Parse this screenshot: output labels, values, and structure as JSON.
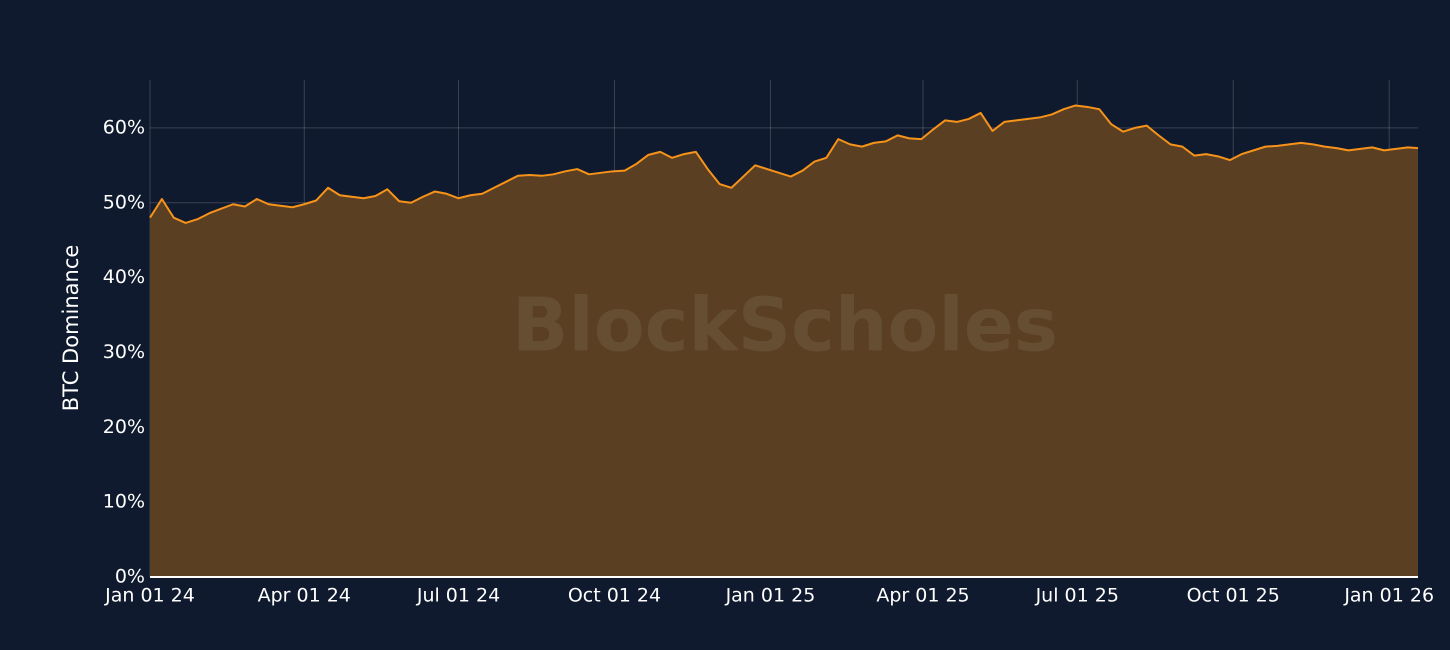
{
  "chart_data": {
    "type": "area",
    "watermark": "BlockScholes",
    "y_label": "BTC Dominance",
    "grid": true,
    "x": [
      "2024-01-01",
      "2024-01-08",
      "2024-01-15",
      "2024-01-22",
      "2024-01-29",
      "2024-02-05",
      "2024-02-12",
      "2024-02-19",
      "2024-02-26",
      "2024-03-04",
      "2024-03-11",
      "2024-03-18",
      "2024-03-25",
      "2024-04-01",
      "2024-04-08",
      "2024-04-15",
      "2024-04-22",
      "2024-04-29",
      "2024-05-06",
      "2024-05-13",
      "2024-05-20",
      "2024-05-27",
      "2024-06-03",
      "2024-06-10",
      "2024-06-17",
      "2024-06-24",
      "2024-07-01",
      "2024-07-08",
      "2024-07-15",
      "2024-07-22",
      "2024-07-29",
      "2024-08-05",
      "2024-08-12",
      "2024-08-19",
      "2024-08-26",
      "2024-09-02",
      "2024-09-09",
      "2024-09-16",
      "2024-09-23",
      "2024-09-30",
      "2024-10-07",
      "2024-10-14",
      "2024-10-21",
      "2024-10-28",
      "2024-11-04",
      "2024-11-11",
      "2024-11-18",
      "2024-11-25",
      "2024-12-02",
      "2024-12-09",
      "2024-12-16",
      "2024-12-23",
      "2024-12-30",
      "2025-01-06",
      "2025-01-13",
      "2025-01-20",
      "2025-01-27",
      "2025-02-03",
      "2025-02-10",
      "2025-02-17",
      "2025-02-24",
      "2025-03-03",
      "2025-03-10",
      "2025-03-17",
      "2025-03-24",
      "2025-03-31",
      "2025-04-07",
      "2025-04-14",
      "2025-04-21",
      "2025-04-28",
      "2025-05-05",
      "2025-05-12",
      "2025-05-19",
      "2025-05-26",
      "2025-06-02",
      "2025-06-09",
      "2025-06-16",
      "2025-06-23",
      "2025-06-30",
      "2025-07-07",
      "2025-07-14",
      "2025-07-21",
      "2025-07-28",
      "2025-08-04",
      "2025-08-11",
      "2025-08-18",
      "2025-08-25",
      "2025-09-01",
      "2025-09-08",
      "2025-09-15",
      "2025-09-22",
      "2025-09-29",
      "2025-10-06",
      "2025-10-13",
      "2025-10-20",
      "2025-10-27",
      "2025-11-03",
      "2025-11-10",
      "2025-11-17",
      "2025-11-24",
      "2025-12-01",
      "2025-12-08",
      "2025-12-15",
      "2025-12-22",
      "2025-12-29",
      "2026-01-05",
      "2026-01-12",
      "2026-01-18"
    ],
    "series": [
      {
        "name": "BTC Dominance",
        "color": "#f7931a",
        "fill": "#5a3f22",
        "values": [
          48.0,
          50.5,
          48.0,
          47.3,
          47.8,
          48.6,
          49.2,
          49.8,
          49.5,
          50.5,
          49.8,
          49.6,
          49.4,
          49.8,
          50.3,
          52.0,
          51.0,
          50.8,
          50.6,
          50.9,
          51.8,
          50.2,
          50.0,
          50.8,
          51.5,
          51.2,
          50.6,
          51.0,
          51.2,
          52.0,
          52.8,
          53.6,
          53.7,
          53.6,
          53.8,
          54.2,
          54.5,
          53.8,
          54.0,
          54.2,
          54.3,
          55.2,
          56.4,
          56.8,
          56.0,
          56.5,
          56.8,
          54.5,
          52.5,
          52.0,
          53.5,
          55.0,
          54.5,
          54.0,
          53.5,
          54.3,
          55.5,
          56.0,
          58.5,
          57.8,
          57.5,
          58.0,
          58.2,
          59.0,
          58.6,
          58.5,
          59.8,
          61.0,
          60.8,
          61.2,
          62.0,
          59.6,
          60.8,
          61.0,
          61.2,
          61.4,
          61.8,
          62.5,
          63.0,
          62.8,
          62.5,
          60.5,
          59.5,
          60.0,
          60.3,
          59.0,
          57.8,
          57.5,
          56.3,
          56.5,
          56.2,
          55.7,
          56.5,
          57.0,
          57.5,
          57.6,
          57.8,
          58.0,
          57.8,
          57.5,
          57.3,
          57.0,
          57.2,
          57.4,
          57.0,
          57.2,
          57.4,
          57.3
        ]
      }
    ],
    "xlim": [
      "2024-01-01",
      "2026-01-18"
    ],
    "xticks": [
      {
        "value": "2024-01-01",
        "label": "Jan 01 24"
      },
      {
        "value": "2024-04-01",
        "label": "Apr 01 24"
      },
      {
        "value": "2024-07-01",
        "label": "Jul 01 24"
      },
      {
        "value": "2024-10-01",
        "label": "Oct 01 24"
      },
      {
        "value": "2025-01-01",
        "label": "Jan 01 25"
      },
      {
        "value": "2025-04-01",
        "label": "Apr 01 25"
      },
      {
        "value": "2025-07-01",
        "label": "Jul 01 25"
      },
      {
        "value": "2025-10-01",
        "label": "Oct 01 25"
      },
      {
        "value": "2026-01-01",
        "label": "Jan 01 26"
      }
    ],
    "ylim": [
      0,
      66.4
    ],
    "yticks": [
      {
        "value": 0,
        "label": "0%"
      },
      {
        "value": 10,
        "label": "10%"
      },
      {
        "value": 20,
        "label": "20%"
      },
      {
        "value": 30,
        "label": "30%"
      },
      {
        "value": 40,
        "label": "40%"
      },
      {
        "value": 50,
        "label": "50%"
      },
      {
        "value": 60,
        "label": "60%"
      }
    ]
  }
}
